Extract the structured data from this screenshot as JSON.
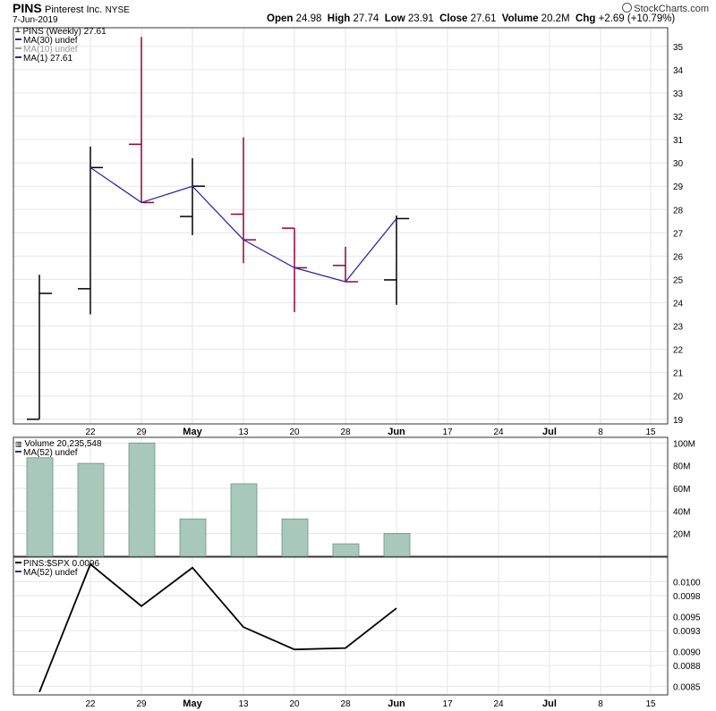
{
  "header": {
    "symbol": "PINS",
    "company": "Pinterest Inc.",
    "exchange": "NYSE",
    "date": "7-Jun-2019",
    "logo_text": "StockCharts.com",
    "ohlc": {
      "open_label": "Open",
      "open": "24.98",
      "high_label": "High",
      "high": "27.74",
      "low_label": "Low",
      "low": "23.91",
      "close_label": "Close",
      "close": "27.61",
      "volume_label": "Volume",
      "volume": "20.2M",
      "chg_label": "Chg",
      "chg": "+2.69 (+10.79%)"
    }
  },
  "legends": {
    "price": [
      "PINS (Weekly) 27.61",
      "MA(30) undef",
      "MA(10) undef",
      "MA(1) 27.61"
    ],
    "volume": [
      "Volume 20,235,548",
      "MA(52) undef"
    ],
    "ratio": [
      "PINS:$SPX 0.0096",
      "MA(52) undef"
    ]
  },
  "colors": {
    "up": "#000000",
    "down": "#990033",
    "ma_line": "#2b2ba0",
    "volume_bar": "#a8c8bc",
    "volume_bar_stroke": "#6f8f86",
    "grid": "#e6e6e6",
    "ma10_legend": "#999999"
  },
  "chart_data": [
    {
      "type": "ohlc",
      "title": "PINS (Weekly)",
      "x_labels": [
        "22",
        "29",
        "May",
        "13",
        "20",
        "28",
        "Jun",
        "17",
        "24",
        "Jul",
        "8",
        "15"
      ],
      "ylim": [
        18.8,
        35.8
      ],
      "y_ticks": [
        19,
        20,
        21,
        22,
        23,
        24,
        25,
        26,
        27,
        28,
        29,
        30,
        31,
        32,
        33,
        34,
        35
      ],
      "bars": [
        {
          "week": "15-Apr",
          "open": 19.0,
          "high": 25.2,
          "low": 19.0,
          "close": 24.4,
          "direction": "up"
        },
        {
          "week": "22-Apr",
          "open": 24.6,
          "high": 30.7,
          "low": 23.5,
          "close": 29.8,
          "direction": "up"
        },
        {
          "week": "29-Apr",
          "open": 30.8,
          "high": 35.4,
          "low": 28.3,
          "close": 28.3,
          "direction": "down"
        },
        {
          "week": "6-May",
          "open": 27.7,
          "high": 30.2,
          "low": 26.9,
          "close": 29.0,
          "direction": "up"
        },
        {
          "week": "13-May",
          "open": 27.8,
          "high": 31.1,
          "low": 25.7,
          "close": 26.7,
          "direction": "down"
        },
        {
          "week": "20-May",
          "open": 27.2,
          "high": 27.2,
          "low": 23.6,
          "close": 25.5,
          "direction": "down"
        },
        {
          "week": "28-May",
          "open": 25.6,
          "high": 26.4,
          "low": 24.9,
          "close": 24.9,
          "direction": "down"
        },
        {
          "week": "3-Jun",
          "open": 24.98,
          "high": 27.74,
          "low": 23.91,
          "close": 27.61,
          "direction": "up"
        }
      ],
      "series": [
        {
          "name": "MA(1)",
          "values": [
            29.8,
            28.3,
            29.0,
            26.7,
            25.5,
            24.9,
            27.61
          ],
          "start_week": "22-Apr"
        }
      ]
    },
    {
      "type": "bar",
      "title": "Volume",
      "ylim": [
        0,
        105000000
      ],
      "y_ticks": [
        20000000,
        40000000,
        60000000,
        80000000,
        100000000
      ],
      "y_tick_labels": [
        "20M",
        "40M",
        "60M",
        "80M",
        "100M"
      ],
      "values": [
        87000000,
        82000000,
        100000000,
        33000000,
        64000000,
        33000000,
        11000000,
        20235548
      ]
    },
    {
      "type": "line",
      "title": "PINS:$SPX",
      "ylim": [
        0.00838,
        0.01035
      ],
      "y_ticks": [
        0.0085,
        0.0088,
        0.009,
        0.0093,
        0.0095,
        0.0098,
        0.01
      ],
      "y_tick_labels": [
        "0.0085",
        "0.0088",
        "0.0090",
        "0.0093",
        "0.0095",
        "0.0098",
        "0.0100"
      ],
      "values": [
        0.00842,
        0.01025,
        0.00965,
        0.0102,
        0.00935,
        0.00903,
        0.00905,
        0.00962
      ]
    }
  ]
}
